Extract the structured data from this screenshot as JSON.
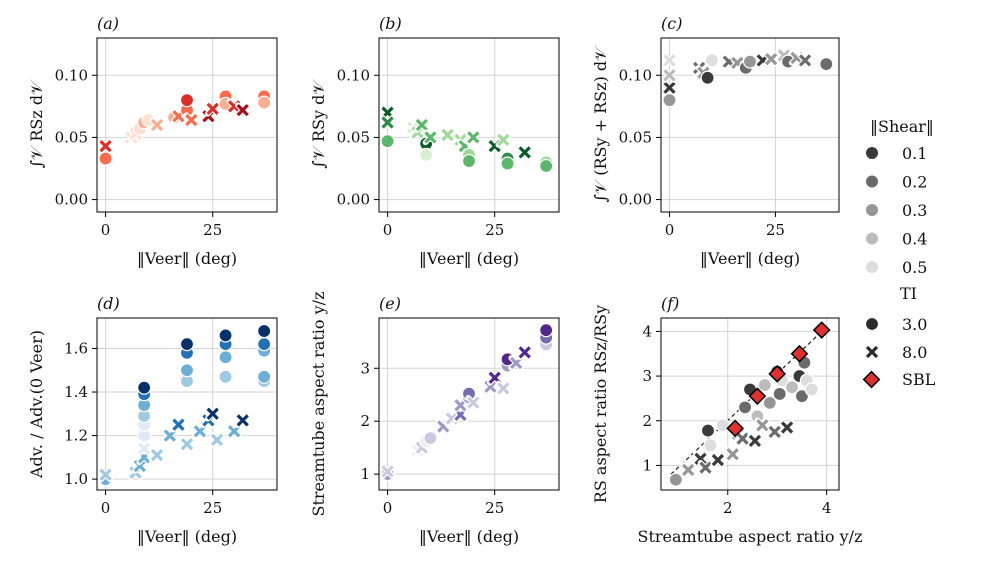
{
  "legend": {
    "shear_title": "‖Shear‖",
    "shear_levels": [
      {
        "label": "0.1",
        "color": "#3a3a3a"
      },
      {
        "label": "0.2",
        "color": "#6b6b6b"
      },
      {
        "label": "0.3",
        "color": "#969696"
      },
      {
        "label": "0.4",
        "color": "#bcbcbc"
      },
      {
        "label": "0.5",
        "color": "#dedede"
      }
    ],
    "ti_title": "TI",
    "ti_levels": [
      {
        "label": "3.0",
        "marker": "circle"
      },
      {
        "label": "8.0",
        "marker": "x"
      }
    ],
    "sbl_label": "SBL",
    "sbl_color": "#e03030"
  },
  "chart_data": [
    {
      "panel": "(a)",
      "type": "scatter",
      "ylabel": "∫𝒱 RSz d𝒱",
      "ylabel_main": "∫",
      "ylabel_rest": "RS",
      "ylabel_sub": "z",
      "ylabel_end": " d𝒱",
      "xlabel": "‖Veer‖ (deg)",
      "xlim": [
        -2,
        40
      ],
      "ylim": [
        -0.01,
        0.13
      ],
      "xticks": [
        0,
        25
      ],
      "xtick_labels": [
        "0",
        "25"
      ],
      "yticks": [
        0.0,
        0.05,
        0.1
      ],
      "ytick_labels": [
        "0.00",
        "0.05",
        "0.10"
      ],
      "palette": [
        "#fde0d2",
        "#fcae91",
        "#fb6a4a",
        "#de2d26",
        "#a50f15"
      ],
      "points": [
        {
          "x": 0,
          "y": 0.033,
          "m": "o",
          "c": 2
        },
        {
          "x": 0,
          "y": 0.043,
          "m": "x",
          "c": 3
        },
        {
          "x": 6,
          "y": 0.05,
          "m": "x",
          "c": 0
        },
        {
          "x": 7,
          "y": 0.053,
          "m": "x",
          "c": 0
        },
        {
          "x": 8,
          "y": 0.057,
          "m": "o",
          "c": 0
        },
        {
          "x": 9,
          "y": 0.062,
          "m": "o",
          "c": 1
        },
        {
          "x": 10,
          "y": 0.064,
          "m": "o",
          "c": 0
        },
        {
          "x": 12,
          "y": 0.06,
          "m": "x",
          "c": 1
        },
        {
          "x": 16,
          "y": 0.066,
          "m": "o",
          "c": 1
        },
        {
          "x": 17,
          "y": 0.067,
          "m": "x",
          "c": 2
        },
        {
          "x": 19,
          "y": 0.072,
          "m": "o",
          "c": 2
        },
        {
          "x": 19,
          "y": 0.08,
          "m": "o",
          "c": 3
        },
        {
          "x": 20,
          "y": 0.064,
          "m": "x",
          "c": 2
        },
        {
          "x": 24,
          "y": 0.067,
          "m": "x",
          "c": 4
        },
        {
          "x": 25,
          "y": 0.073,
          "m": "x",
          "c": 3
        },
        {
          "x": 28,
          "y": 0.083,
          "m": "o",
          "c": 2
        },
        {
          "x": 28,
          "y": 0.077,
          "m": "o",
          "c": 1
        },
        {
          "x": 30,
          "y": 0.075,
          "m": "x",
          "c": 3
        },
        {
          "x": 32,
          "y": 0.072,
          "m": "x",
          "c": 4
        },
        {
          "x": 37,
          "y": 0.083,
          "m": "o",
          "c": 2
        },
        {
          "x": 37,
          "y": 0.078,
          "m": "o",
          "c": 1
        }
      ]
    },
    {
      "panel": "(b)",
      "type": "scatter",
      "ylabel": "∫𝒱 RSy d𝒱",
      "ylabel_main": "∫",
      "ylabel_rest": "RS",
      "ylabel_sub": "y",
      "ylabel_end": " d𝒱",
      "xlabel": "‖Veer‖ (deg)",
      "xlim": [
        -2,
        40
      ],
      "ylim": [
        -0.01,
        0.13
      ],
      "xticks": [
        0,
        25
      ],
      "xtick_labels": [
        "0",
        "25"
      ],
      "yticks": [
        0.0,
        0.05,
        0.1
      ],
      "ytick_labels": [
        "0.00",
        "0.05",
        "0.10"
      ],
      "palette": [
        "#d9f0d3",
        "#a1d99b",
        "#5bb86b",
        "#2e8b47",
        "#0b5d28"
      ],
      "points": [
        {
          "x": 0,
          "y": 0.047,
          "m": "o",
          "c": 2
        },
        {
          "x": 0,
          "y": 0.07,
          "m": "x",
          "c": 4
        },
        {
          "x": 0,
          "y": 0.062,
          "m": "x",
          "c": 3
        },
        {
          "x": 6,
          "y": 0.058,
          "m": "x",
          "c": 0
        },
        {
          "x": 7,
          "y": 0.054,
          "m": "x",
          "c": 1
        },
        {
          "x": 8,
          "y": 0.06,
          "m": "x",
          "c": 2
        },
        {
          "x": 9,
          "y": 0.045,
          "m": "o",
          "c": 4
        },
        {
          "x": 9,
          "y": 0.036,
          "m": "o",
          "c": 0
        },
        {
          "x": 10,
          "y": 0.05,
          "m": "x",
          "c": 2
        },
        {
          "x": 14,
          "y": 0.052,
          "m": "x",
          "c": 1
        },
        {
          "x": 17,
          "y": 0.048,
          "m": "x",
          "c": 1
        },
        {
          "x": 18,
          "y": 0.043,
          "m": "x",
          "c": 2
        },
        {
          "x": 19,
          "y": 0.036,
          "m": "o",
          "c": 1
        },
        {
          "x": 19,
          "y": 0.031,
          "m": "o",
          "c": 2
        },
        {
          "x": 20,
          "y": 0.05,
          "m": "x",
          "c": 2
        },
        {
          "x": 25,
          "y": 0.043,
          "m": "x",
          "c": 4
        },
        {
          "x": 27,
          "y": 0.048,
          "m": "x",
          "c": 1
        },
        {
          "x": 28,
          "y": 0.033,
          "m": "o",
          "c": 3
        },
        {
          "x": 28,
          "y": 0.029,
          "m": "o",
          "c": 2
        },
        {
          "x": 32,
          "y": 0.038,
          "m": "x",
          "c": 4
        },
        {
          "x": 37,
          "y": 0.03,
          "m": "o",
          "c": 1
        },
        {
          "x": 37,
          "y": 0.027,
          "m": "o",
          "c": 2
        }
      ]
    },
    {
      "panel": "(c)",
      "type": "scatter",
      "ylabel": "∫𝒱 (RSy + RSz) d𝒱",
      "xlabel": "‖Veer‖ (deg)",
      "xlim": [
        -2,
        40
      ],
      "ylim": [
        -0.01,
        0.13
      ],
      "xticks": [
        0,
        25
      ],
      "xtick_labels": [
        "0",
        "25"
      ],
      "yticks": [
        0.0,
        0.05,
        0.1
      ],
      "ytick_labels": [
        "0.00",
        "0.05",
        "0.10"
      ],
      "palette": [
        "#dedede",
        "#bcbcbc",
        "#969696",
        "#6b6b6b",
        "#3a3a3a"
      ],
      "points": [
        {
          "x": 0,
          "y": 0.08,
          "m": "o",
          "c": 2
        },
        {
          "x": 0,
          "y": 0.09,
          "m": "x",
          "c": 4
        },
        {
          "x": 0,
          "y": 0.1,
          "m": "x",
          "c": 1
        },
        {
          "x": 0,
          "y": 0.112,
          "m": "x",
          "c": 0
        },
        {
          "x": 7,
          "y": 0.106,
          "m": "x",
          "c": 3
        },
        {
          "x": 8,
          "y": 0.102,
          "m": "x",
          "c": 2
        },
        {
          "x": 9,
          "y": 0.098,
          "m": "o",
          "c": 4
        },
        {
          "x": 10,
          "y": 0.112,
          "m": "o",
          "c": 0
        },
        {
          "x": 14,
          "y": 0.111,
          "m": "x",
          "c": 3
        },
        {
          "x": 16,
          "y": 0.11,
          "m": "x",
          "c": 2
        },
        {
          "x": 18,
          "y": 0.106,
          "m": "o",
          "c": 3
        },
        {
          "x": 19,
          "y": 0.111,
          "m": "o",
          "c": 2
        },
        {
          "x": 22,
          "y": 0.112,
          "m": "x",
          "c": 4
        },
        {
          "x": 24,
          "y": 0.113,
          "m": "x",
          "c": 2
        },
        {
          "x": 27,
          "y": 0.116,
          "m": "x",
          "c": 1
        },
        {
          "x": 28,
          "y": 0.111,
          "m": "o",
          "c": 3
        },
        {
          "x": 30,
          "y": 0.114,
          "m": "x",
          "c": 2
        },
        {
          "x": 32,
          "y": 0.112,
          "m": "x",
          "c": 3
        },
        {
          "x": 37,
          "y": 0.109,
          "m": "o",
          "c": 3
        }
      ]
    },
    {
      "panel": "(d)",
      "type": "scatter",
      "ylabel": "Adv. / Adv.(0 Veer)",
      "xlabel": "‖Veer‖ (deg)",
      "xlim": [
        -2,
        40
      ],
      "ylim": [
        0.95,
        1.74
      ],
      "xticks": [
        0,
        25
      ],
      "xtick_labels": [
        "0",
        "25"
      ],
      "yticks": [
        1.0,
        1.2,
        1.4,
        1.6
      ],
      "ytick_labels": [
        "1.0",
        "1.2",
        "1.4",
        "1.6"
      ],
      "palette": [
        "#deebf7",
        "#9ecae1",
        "#6baed6",
        "#2171b5",
        "#08306b"
      ],
      "points": [
        {
          "x": 0,
          "y": 1.0,
          "m": "o",
          "c": 2
        },
        {
          "x": 0,
          "y": 1.02,
          "m": "x",
          "c": 1
        },
        {
          "x": 7,
          "y": 1.03,
          "m": "x",
          "c": 1
        },
        {
          "x": 8,
          "y": 1.06,
          "m": "x",
          "c": 2
        },
        {
          "x": 9,
          "y": 1.1,
          "m": "x",
          "c": 2
        },
        {
          "x": 9,
          "y": 1.14,
          "m": "x",
          "c": 0
        },
        {
          "x": 9,
          "y": 1.2,
          "m": "o",
          "c": 0
        },
        {
          "x": 9,
          "y": 1.25,
          "m": "o",
          "c": 0
        },
        {
          "x": 9,
          "y": 1.29,
          "m": "o",
          "c": 1
        },
        {
          "x": 9,
          "y": 1.34,
          "m": "o",
          "c": 2
        },
        {
          "x": 9,
          "y": 1.39,
          "m": "o",
          "c": 3
        },
        {
          "x": 9,
          "y": 1.42,
          "m": "o",
          "c": 4
        },
        {
          "x": 12,
          "y": 1.11,
          "m": "x",
          "c": 1
        },
        {
          "x": 15,
          "y": 1.2,
          "m": "x",
          "c": 2
        },
        {
          "x": 17,
          "y": 1.25,
          "m": "x",
          "c": 3
        },
        {
          "x": 19,
          "y": 1.16,
          "m": "x",
          "c": 1
        },
        {
          "x": 19,
          "y": 1.45,
          "m": "o",
          "c": 1
        },
        {
          "x": 19,
          "y": 1.5,
          "m": "o",
          "c": 2
        },
        {
          "x": 19,
          "y": 1.58,
          "m": "o",
          "c": 3
        },
        {
          "x": 19,
          "y": 1.62,
          "m": "o",
          "c": 4
        },
        {
          "x": 22,
          "y": 1.22,
          "m": "x",
          "c": 2
        },
        {
          "x": 24,
          "y": 1.27,
          "m": "x",
          "c": 3
        },
        {
          "x": 25,
          "y": 1.3,
          "m": "x",
          "c": 4
        },
        {
          "x": 26,
          "y": 1.18,
          "m": "x",
          "c": 1
        },
        {
          "x": 28,
          "y": 1.47,
          "m": "o",
          "c": 1
        },
        {
          "x": 28,
          "y": 1.56,
          "m": "o",
          "c": 2
        },
        {
          "x": 28,
          "y": 1.62,
          "m": "o",
          "c": 3
        },
        {
          "x": 28,
          "y": 1.66,
          "m": "o",
          "c": 4
        },
        {
          "x": 30,
          "y": 1.22,
          "m": "x",
          "c": 2
        },
        {
          "x": 32,
          "y": 1.27,
          "m": "x",
          "c": 4
        },
        {
          "x": 37,
          "y": 1.45,
          "m": "o",
          "c": 1
        },
        {
          "x": 37,
          "y": 1.47,
          "m": "o",
          "c": 2
        },
        {
          "x": 37,
          "y": 1.59,
          "m": "o",
          "c": 2
        },
        {
          "x": 37,
          "y": 1.62,
          "m": "o",
          "c": 3
        },
        {
          "x": 37,
          "y": 1.68,
          "m": "o",
          "c": 4
        }
      ]
    },
    {
      "panel": "(e)",
      "type": "scatter",
      "ylabel": "Streamtube aspect ratio y/z",
      "xlabel": "‖Veer‖ (deg)",
      "xlim": [
        -2,
        40
      ],
      "ylim": [
        0.7,
        3.95
      ],
      "xticks": [
        0,
        25
      ],
      "xtick_labels": [
        "0",
        "25"
      ],
      "yticks": [
        1,
        2,
        3
      ],
      "ytick_labels": [
        "1",
        "2",
        "3"
      ],
      "palette": [
        "#efedf5",
        "#cbc9e2",
        "#9e9ac8",
        "#756bb1",
        "#54278f"
      ],
      "points": [
        {
          "x": 0,
          "y": 1.0,
          "m": "o",
          "c": 2
        },
        {
          "x": 0,
          "y": 1.05,
          "m": "x",
          "c": 1
        },
        {
          "x": 7,
          "y": 1.45,
          "m": "x",
          "c": 0
        },
        {
          "x": 8,
          "y": 1.5,
          "m": "x",
          "c": 1
        },
        {
          "x": 9,
          "y": 1.62,
          "m": "o",
          "c": 0
        },
        {
          "x": 10,
          "y": 1.68,
          "m": "o",
          "c": 1
        },
        {
          "x": 13,
          "y": 1.9,
          "m": "x",
          "c": 2
        },
        {
          "x": 15,
          "y": 2.05,
          "m": "x",
          "c": 1
        },
        {
          "x": 17,
          "y": 2.12,
          "m": "x",
          "c": 3
        },
        {
          "x": 17,
          "y": 2.3,
          "m": "x",
          "c": 2
        },
        {
          "x": 19,
          "y": 2.45,
          "m": "o",
          "c": 2
        },
        {
          "x": 19,
          "y": 2.52,
          "m": "o",
          "c": 3
        },
        {
          "x": 20,
          "y": 2.35,
          "m": "x",
          "c": 1
        },
        {
          "x": 24,
          "y": 2.65,
          "m": "x",
          "c": 2
        },
        {
          "x": 25,
          "y": 2.82,
          "m": "x",
          "c": 4
        },
        {
          "x": 27,
          "y": 2.62,
          "m": "x",
          "c": 1
        },
        {
          "x": 28,
          "y": 3.05,
          "m": "o",
          "c": 2
        },
        {
          "x": 28,
          "y": 3.17,
          "m": "o",
          "c": 4
        },
        {
          "x": 30,
          "y": 3.1,
          "m": "x",
          "c": 2
        },
        {
          "x": 32,
          "y": 3.3,
          "m": "x",
          "c": 4
        },
        {
          "x": 37,
          "y": 3.45,
          "m": "o",
          "c": 1
        },
        {
          "x": 37,
          "y": 3.58,
          "m": "o",
          "c": 3
        },
        {
          "x": 37,
          "y": 3.72,
          "m": "o",
          "c": 4
        }
      ]
    },
    {
      "panel": "(f)",
      "type": "scatter",
      "ylabel": "RS aspect ratio RSz/RSy",
      "xlabel": "Streamtube aspect ratio y/z",
      "xlim": [
        0.65,
        4.25
      ],
      "ylim": [
        0.45,
        4.3
      ],
      "xticks": [
        2,
        4
      ],
      "xtick_labels": [
        "2",
        "4"
      ],
      "yticks": [
        1,
        2,
        3,
        4
      ],
      "ytick_labels": [
        "1",
        "2",
        "3",
        "4"
      ],
      "palette": [
        "#dedede",
        "#bcbcbc",
        "#969696",
        "#6b6b6b",
        "#3a3a3a"
      ],
      "dashed_line": [
        [
          0.85,
          0.8
        ],
        [
          3.95,
          4.05
        ]
      ],
      "points": [
        {
          "x": 0.95,
          "y": 0.68,
          "m": "o",
          "c": 2
        },
        {
          "x": 1.2,
          "y": 0.9,
          "m": "x",
          "c": 2
        },
        {
          "x": 1.45,
          "y": 1.15,
          "m": "x",
          "c": 4
        },
        {
          "x": 1.55,
          "y": 0.95,
          "m": "x",
          "c": 3
        },
        {
          "x": 1.6,
          "y": 1.78,
          "m": "o",
          "c": 4
        },
        {
          "x": 1.65,
          "y": 1.45,
          "m": "o",
          "c": 0
        },
        {
          "x": 1.8,
          "y": 1.12,
          "m": "x",
          "c": 4
        },
        {
          "x": 1.9,
          "y": 1.9,
          "m": "o",
          "c": 0
        },
        {
          "x": 2.1,
          "y": 1.25,
          "m": "x",
          "c": 2
        },
        {
          "x": 2.2,
          "y": 1.7,
          "m": "x",
          "c": 1
        },
        {
          "x": 2.3,
          "y": 1.6,
          "m": "x",
          "c": 3
        },
        {
          "x": 2.35,
          "y": 2.3,
          "m": "o",
          "c": 3
        },
        {
          "x": 2.45,
          "y": 2.7,
          "m": "o",
          "c": 4
        },
        {
          "x": 2.55,
          "y": 1.55,
          "m": "x",
          "c": 4
        },
        {
          "x": 2.6,
          "y": 2.1,
          "m": "o",
          "c": 1
        },
        {
          "x": 2.7,
          "y": 1.9,
          "m": "x",
          "c": 2
        },
        {
          "x": 2.75,
          "y": 2.8,
          "m": "o",
          "c": 1
        },
        {
          "x": 2.85,
          "y": 2.4,
          "m": "o",
          "c": 2
        },
        {
          "x": 2.95,
          "y": 1.75,
          "m": "x",
          "c": 3
        },
        {
          "x": 3.0,
          "y": 3.1,
          "m": "o",
          "c": 4
        },
        {
          "x": 3.05,
          "y": 2.6,
          "m": "o",
          "c": 3
        },
        {
          "x": 3.1,
          "y": 2.9,
          "m": "o",
          "c": 0
        },
        {
          "x": 3.2,
          "y": 1.85,
          "m": "x",
          "c": 4
        },
        {
          "x": 3.3,
          "y": 2.75,
          "m": "o",
          "c": 1
        },
        {
          "x": 3.45,
          "y": 3.0,
          "m": "o",
          "c": 4
        },
        {
          "x": 3.5,
          "y": 2.55,
          "m": "o",
          "c": 3
        },
        {
          "x": 3.55,
          "y": 3.3,
          "m": "o",
          "c": 3
        },
        {
          "x": 3.6,
          "y": 2.9,
          "m": "o",
          "c": 0
        },
        {
          "x": 3.7,
          "y": 2.7,
          "m": "o",
          "c": 0
        }
      ],
      "sbl_points": [
        {
          "x": 2.15,
          "y": 1.83
        },
        {
          "x": 2.6,
          "y": 2.55
        },
        {
          "x": 3.0,
          "y": 3.05
        },
        {
          "x": 3.45,
          "y": 3.5
        },
        {
          "x": 3.9,
          "y": 4.03
        }
      ]
    }
  ]
}
